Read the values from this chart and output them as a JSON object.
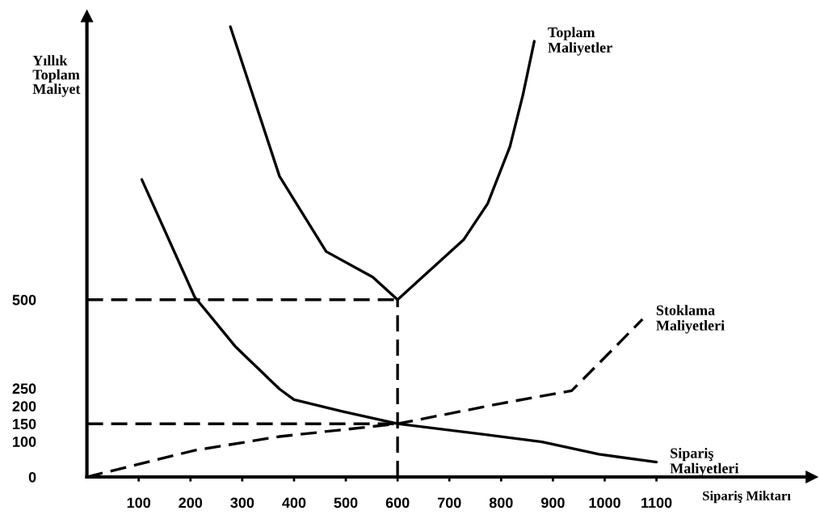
{
  "chart_data": {
    "type": "line",
    "xlabel": "Sipariş Miktarı",
    "ylabel": "Yıllık\nToplam\nMaliyet",
    "xlim": [
      0,
      1400
    ],
    "xticks": [
      100,
      200,
      300,
      400,
      500,
      600,
      700,
      800,
      900,
      1000,
      1100
    ],
    "ylim": [
      0,
      1300
    ],
    "yticks": [
      0,
      100,
      150,
      200,
      250,
      500
    ],
    "series": [
      {
        "name": "Toplam\nMaliyetler",
        "color": "#000000",
        "line_style": "solid",
        "x": [
          277,
          372,
          462,
          552,
          600,
          728,
          774,
          817,
          842,
          864
        ],
        "values": [
          1270,
          848,
          636,
          564,
          500,
          670,
          771,
          932,
          1077,
          1229
        ]
      },
      {
        "name": "Stoklama\nMaliyetleri",
        "color": "#000000",
        "line_style": "dashed",
        "x": [
          0,
          208,
          372,
          600,
          802,
          936,
          1030,
          1073
        ],
        "values": [
          0,
          75,
          114,
          150,
          208,
          243,
          381,
          445
        ]
      },
      {
        "name": "Sipariş\nMaliyetleri",
        "color": "#000000",
        "line_style": "solid",
        "x": [
          106,
          208,
          286,
          372,
          400,
          493,
          600,
          767,
          879,
          989,
          1100
        ],
        "values": [
          839,
          508,
          369,
          248,
          218,
          185,
          150,
          120,
          99,
          64,
          42
        ]
      },
      {
        "color": "#000000",
        "line_style": "dashed",
        "x": [
          0,
          600
        ],
        "values": [
          500,
          500
        ]
      },
      {
        "color": "#000000",
        "line_style": "dashed",
        "x": [
          600,
          600
        ],
        "values": [
          0,
          500
        ]
      },
      {
        "color": "#000000",
        "line_style": "dashed",
        "x": [
          0,
          600
        ],
        "values": [
          150,
          150
        ]
      }
    ]
  }
}
